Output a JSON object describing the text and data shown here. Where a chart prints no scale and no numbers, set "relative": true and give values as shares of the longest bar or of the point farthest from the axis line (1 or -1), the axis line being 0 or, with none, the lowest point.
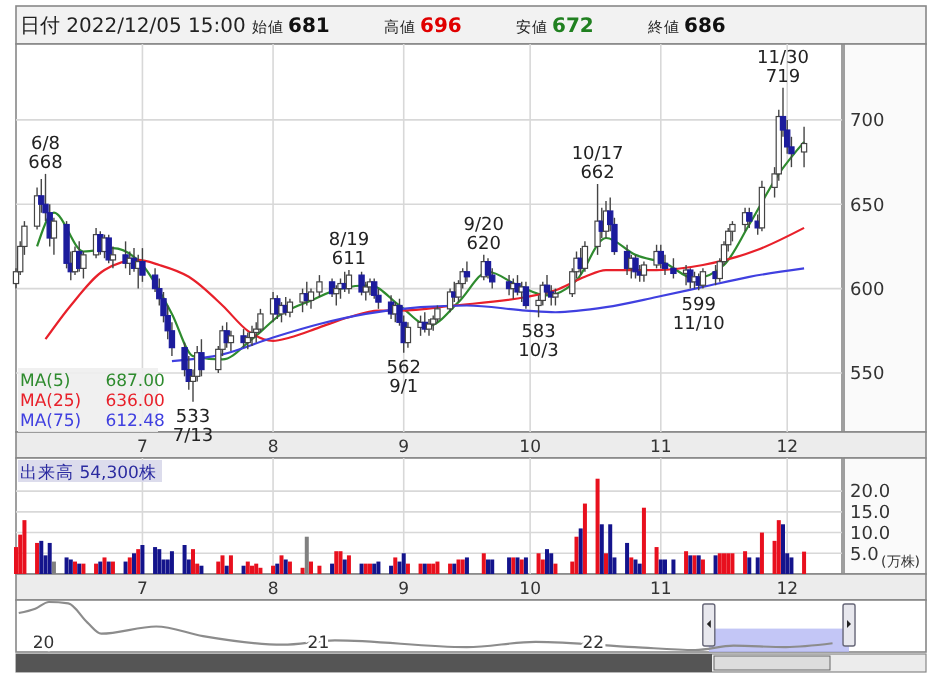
{
  "chart_data": [
    {
      "type": "candlestick",
      "title": "日付 2022/12/05 15:00",
      "annotations": [
        "始値 681",
        "高値 696",
        "安値 672",
        "終値 686",
        {
          "text": "6/8\n668",
          "x": "2022-06-08",
          "y": 668
        },
        {
          "text": "533\n7/13",
          "x": "2022-07-13",
          "y": 533
        },
        {
          "text": "8/19\n611",
          "x": "2022-08-19",
          "y": 611
        },
        {
          "text": "562\n9/1",
          "x": "2022-09-01",
          "y": 562
        },
        {
          "text": "9/20\n620",
          "x": "2022-09-20",
          "y": 620
        },
        {
          "text": "583\n10/3",
          "x": "2022-10-03",
          "y": 583
        },
        {
          "text": "10/17\n662",
          "x": "2022-10-17",
          "y": 662
        },
        {
          "text": "599\n11/10",
          "x": "2022-11-10",
          "y": 599
        },
        {
          "text": "11/30\n719",
          "x": "2022-11-30",
          "y": 719
        }
      ],
      "x": [
        "2022-06-01",
        "2022-06-02",
        "2022-06-03",
        "2022-06-06",
        "2022-06-07",
        "2022-06-08",
        "2022-06-09",
        "2022-06-10",
        "2022-06-13",
        "2022-06-14",
        "2022-06-15",
        "2022-06-16",
        "2022-06-17",
        "2022-06-20",
        "2022-06-21",
        "2022-06-22",
        "2022-06-23",
        "2022-06-24",
        "2022-06-27",
        "2022-06-28",
        "2022-06-29",
        "2022-06-30",
        "2022-07-01",
        "2022-07-04",
        "2022-07-05",
        "2022-07-06",
        "2022-07-07",
        "2022-07-08",
        "2022-07-11",
        "2022-07-12",
        "2022-07-13",
        "2022-07-14",
        "2022-07-15",
        "2022-07-19",
        "2022-07-20",
        "2022-07-21",
        "2022-07-22",
        "2022-07-25",
        "2022-07-26",
        "2022-07-27",
        "2022-07-28",
        "2022-07-29",
        "2022-08-01",
        "2022-08-02",
        "2022-08-03",
        "2022-08-04",
        "2022-08-05",
        "2022-08-08",
        "2022-08-09",
        "2022-08-10",
        "2022-08-12",
        "2022-08-15",
        "2022-08-16",
        "2022-08-17",
        "2022-08-18",
        "2022-08-19",
        "2022-08-22",
        "2022-08-23",
        "2022-08-24",
        "2022-08-25",
        "2022-08-26",
        "2022-08-29",
        "2022-08-30",
        "2022-08-31",
        "2022-09-01",
        "2022-09-02",
        "2022-09-05",
        "2022-09-06",
        "2022-09-07",
        "2022-09-08",
        "2022-09-09",
        "2022-09-12",
        "2022-09-13",
        "2022-09-14",
        "2022-09-15",
        "2022-09-16",
        "2022-09-20",
        "2022-09-21",
        "2022-09-22",
        "2022-09-26",
        "2022-09-27",
        "2022-09-28",
        "2022-09-29",
        "2022-09-30",
        "2022-10-03",
        "2022-10-04",
        "2022-10-05",
        "2022-10-06",
        "2022-10-07",
        "2022-10-11",
        "2022-10-12",
        "2022-10-13",
        "2022-10-14",
        "2022-10-17",
        "2022-10-18",
        "2022-10-19",
        "2022-10-20",
        "2022-10-21",
        "2022-10-24",
        "2022-10-25",
        "2022-10-26",
        "2022-10-27",
        "2022-10-28",
        "2022-10-31",
        "2022-11-01",
        "2022-11-02",
        "2022-11-04",
        "2022-11-07",
        "2022-11-08",
        "2022-11-09",
        "2022-11-10",
        "2022-11-11",
        "2022-11-14",
        "2022-11-15",
        "2022-11-16",
        "2022-11-17",
        "2022-11-18",
        "2022-11-21",
        "2022-11-22",
        "2022-11-24",
        "2022-11-25",
        "2022-11-28",
        "2022-11-29",
        "2022-11-30",
        "2022-12-01",
        "2022-12-02",
        "2022-12-05"
      ],
      "ohlc": [
        [
          603,
          612,
          600,
          610
        ],
        [
          610,
          628,
          608,
          625
        ],
        [
          625,
          640,
          620,
          637
        ],
        [
          637,
          660,
          635,
          655
        ],
        [
          655,
          665,
          645,
          650
        ],
        [
          650,
          668,
          640,
          645
        ],
        [
          645,
          650,
          625,
          630
        ],
        [
          630,
          642,
          620,
          640
        ],
        [
          638,
          640,
          612,
          615
        ],
        [
          615,
          622,
          605,
          610
        ],
        [
          610,
          625,
          608,
          622
        ],
        [
          622,
          628,
          610,
          612
        ],
        [
          612,
          622,
          606,
          620
        ],
        [
          620,
          636,
          618,
          632
        ],
        [
          632,
          634,
          620,
          622
        ],
        [
          622,
          632,
          618,
          630
        ],
        [
          630,
          632,
          615,
          617
        ],
        [
          617,
          625,
          612,
          620
        ],
        [
          620,
          628,
          612,
          615
        ],
        [
          615,
          622,
          608,
          618
        ],
        [
          618,
          624,
          610,
          612
        ],
        [
          612,
          620,
          600,
          616
        ],
        [
          616,
          624,
          604,
          608
        ],
        [
          608,
          612,
          598,
          600
        ],
        [
          600,
          606,
          590,
          594
        ],
        [
          594,
          598,
          580,
          584
        ],
        [
          584,
          590,
          570,
          575
        ],
        [
          575,
          580,
          560,
          565
        ],
        [
          565,
          568,
          548,
          552
        ],
        [
          552,
          560,
          540,
          545
        ],
        [
          545,
          552,
          533,
          548
        ],
        [
          548,
          566,
          545,
          562
        ],
        [
          562,
          570,
          548,
          552
        ],
        [
          552,
          566,
          550,
          564
        ],
        [
          564,
          578,
          560,
          575
        ],
        [
          575,
          580,
          565,
          568
        ],
        [
          568,
          575,
          563,
          572
        ],
        [
          572,
          576,
          565,
          568
        ],
        [
          568,
          574,
          564,
          571
        ],
        [
          571,
          578,
          566,
          574
        ],
        [
          574,
          580,
          568,
          576
        ],
        [
          576,
          588,
          574,
          585
        ],
        [
          585,
          598,
          580,
          594
        ],
        [
          594,
          596,
          582,
          585
        ],
        [
          585,
          592,
          580,
          590
        ],
        [
          590,
          595,
          584,
          586
        ],
        [
          586,
          594,
          583,
          592
        ],
        [
          592,
          600,
          586,
          597
        ],
        [
          597,
          604,
          590,
          593
        ],
        [
          593,
          600,
          588,
          598
        ],
        [
          598,
          608,
          595,
          604
        ],
        [
          604,
          606,
          595,
          597
        ],
        [
          597,
          602,
          590,
          600
        ],
        [
          600,
          606,
          594,
          603
        ],
        [
          603,
          610,
          598,
          600
        ],
        [
          600,
          611,
          597,
          608
        ],
        [
          608,
          610,
          596,
          598
        ],
        [
          598,
          604,
          593,
          601
        ],
        [
          601,
          606,
          596,
          604
        ],
        [
          604,
          606,
          594,
          596
        ],
        [
          596,
          600,
          588,
          592
        ],
        [
          592,
          596,
          582,
          585
        ],
        [
          585,
          592,
          580,
          590
        ],
        [
          590,
          594,
          578,
          580
        ],
        [
          580,
          584,
          562,
          568
        ],
        [
          568,
          580,
          565,
          577
        ],
        [
          577,
          584,
          572,
          580
        ],
        [
          580,
          586,
          574,
          576
        ],
        [
          576,
          582,
          572,
          579
        ],
        [
          579,
          584,
          575,
          582
        ],
        [
          582,
          590,
          580,
          588
        ],
        [
          588,
          600,
          586,
          598
        ],
        [
          598,
          604,
          592,
          595
        ],
        [
          595,
          605,
          592,
          603
        ],
        [
          603,
          612,
          600,
          610
        ],
        [
          610,
          616,
          604,
          607
        ],
        [
          607,
          620,
          605,
          616
        ],
        [
          616,
          618,
          606,
          608
        ],
        [
          608,
          612,
          600,
          604
        ],
        [
          604,
          608,
          596,
          600
        ],
        [
          600,
          606,
          594,
          603
        ],
        [
          603,
          608,
          596,
          598
        ],
        [
          598,
          604,
          592,
          601
        ],
        [
          601,
          604,
          588,
          590
        ],
        [
          590,
          596,
          583,
          593
        ],
        [
          593,
          604,
          590,
          602
        ],
        [
          602,
          608,
          596,
          598
        ],
        [
          598,
          602,
          590,
          595
        ],
        [
          595,
          600,
          590,
          597
        ],
        [
          597,
          612,
          595,
          610
        ],
        [
          610,
          622,
          606,
          618
        ],
        [
          618,
          624,
          608,
          612
        ],
        [
          612,
          628,
          610,
          625
        ],
        [
          625,
          662,
          620,
          640
        ],
        [
          640,
          648,
          630,
          634
        ],
        [
          634,
          652,
          630,
          646
        ],
        [
          646,
          654,
          634,
          638
        ],
        [
          638,
          642,
          620,
          622
        ],
        [
          622,
          626,
          608,
          612
        ],
        [
          612,
          620,
          606,
          618
        ],
        [
          618,
          620,
          606,
          610
        ],
        [
          610,
          614,
          604,
          608
        ],
        [
          608,
          616,
          604,
          614
        ],
        [
          614,
          626,
          612,
          622
        ],
        [
          622,
          626,
          612,
          615
        ],
        [
          615,
          620,
          608,
          612
        ],
        [
          612,
          618,
          606,
          609
        ],
        [
          609,
          614,
          602,
          611
        ],
        [
          611,
          612,
          600,
          604
        ],
        [
          604,
          610,
          600,
          607
        ],
        [
          607,
          609,
          599,
          602
        ],
        [
          602,
          612,
          600,
          610
        ],
        [
          610,
          614,
          602,
          606
        ],
        [
          606,
          618,
          604,
          616
        ],
        [
          616,
          628,
          614,
          626
        ],
        [
          626,
          636,
          622,
          634
        ],
        [
          634,
          640,
          628,
          638
        ],
        [
          638,
          648,
          634,
          645
        ],
        [
          645,
          648,
          636,
          640
        ],
        [
          640,
          644,
          632,
          636
        ],
        [
          636,
          664,
          634,
          660
        ],
        [
          660,
          672,
          654,
          668
        ],
        [
          668,
          706,
          664,
          702
        ],
        [
          702,
          719,
          690,
          694
        ],
        [
          694,
          700,
          680,
          684
        ],
        [
          684,
          690,
          672,
          680
        ],
        [
          681,
          696,
          672,
          686
        ]
      ],
      "series": [
        {
          "type": "line",
          "name": "MA(5) 687.00",
          "color": "#2e8b2e",
          "x": [
            "2022-06-06",
            "2022-06-10",
            "2022-06-17",
            "2022-06-24",
            "2022-07-01",
            "2022-07-08",
            "2022-07-13",
            "2022-07-20",
            "2022-07-27",
            "2022-08-03",
            "2022-08-10",
            "2022-08-17",
            "2022-08-24",
            "2022-08-31",
            "2022-09-07",
            "2022-09-14",
            "2022-09-21",
            "2022-09-28",
            "2022-10-05",
            "2022-10-12",
            "2022-10-19",
            "2022-10-26",
            "2022-11-02",
            "2022-11-09",
            "2022-11-16",
            "2022-11-22",
            "2022-11-29",
            "2022-12-05"
          ],
          "values": [
            625,
            645,
            622,
            624,
            614,
            585,
            560,
            558,
            570,
            585,
            593,
            600,
            602,
            590,
            578,
            592,
            610,
            602,
            596,
            605,
            630,
            620,
            615,
            606,
            614,
            638,
            668,
            687
          ]
        },
        {
          "type": "line",
          "name": "MA(25) 636.00",
          "color": "#e8202a",
          "x": [
            "2022-06-08",
            "2022-06-14",
            "2022-06-22",
            "2022-06-30",
            "2022-07-05",
            "2022-07-12",
            "2022-07-20",
            "2022-07-26",
            "2022-08-01",
            "2022-08-05",
            "2022-08-12",
            "2022-08-19",
            "2022-08-26",
            "2022-08-31",
            "2022-09-13",
            "2022-09-30",
            "2022-10-07",
            "2022-10-14",
            "2022-10-19",
            "2022-10-31",
            "2022-11-11",
            "2022-11-24",
            "2022-12-05"
          ],
          "values": [
            570,
            590,
            611,
            617,
            614,
            607,
            590,
            575,
            569,
            571,
            577,
            583,
            587,
            587,
            590,
            595,
            599,
            607,
            611,
            611,
            614,
            623,
            636
          ]
        },
        {
          "type": "line",
          "name": "MA(75) 612.48",
          "color": "#4040e0",
          "x": [
            "2022-07-08",
            "2022-07-20",
            "2022-08-01",
            "2022-08-12",
            "2022-08-23",
            "2022-09-05",
            "2022-09-16",
            "2022-09-30",
            "2022-10-07",
            "2022-10-19",
            "2022-10-31",
            "2022-11-11",
            "2022-11-22",
            "2022-12-05"
          ],
          "values": [
            557,
            561,
            571,
            579,
            585,
            589,
            590,
            587,
            586,
            589,
            595,
            601,
            607,
            612
          ]
        }
      ],
      "xlim": [
        "2022-06-01",
        "2022-12-14"
      ],
      "xticks": [
        {
          "value": "2022-07-01",
          "label": "7"
        },
        {
          "value": "2022-08-01",
          "label": "8"
        },
        {
          "value": "2022-09-01",
          "label": "9"
        },
        {
          "value": "2022-10-01",
          "label": "10"
        },
        {
          "value": "2022-11-01",
          "label": "11"
        },
        {
          "value": "2022-12-01",
          "label": "12"
        }
      ],
      "ylim": [
        515,
        745
      ],
      "yticks": [
        550,
        600,
        650,
        700
      ],
      "grid": true
    },
    {
      "type": "bar",
      "title": "出来高 54,300株",
      "ylabel": "(万株)",
      "x": [
        "2022-06-01",
        "2022-06-02",
        "2022-06-03",
        "2022-06-06",
        "2022-06-07",
        "2022-06-08",
        "2022-06-09",
        "2022-06-10",
        "2022-06-13",
        "2022-06-14",
        "2022-06-15",
        "2022-06-16",
        "2022-06-17",
        "2022-06-20",
        "2022-06-21",
        "2022-06-22",
        "2022-06-23",
        "2022-06-24",
        "2022-06-27",
        "2022-06-28",
        "2022-06-29",
        "2022-06-30",
        "2022-07-01",
        "2022-07-04",
        "2022-07-05",
        "2022-07-06",
        "2022-07-07",
        "2022-07-08",
        "2022-07-11",
        "2022-07-12",
        "2022-07-13",
        "2022-07-14",
        "2022-07-15",
        "2022-07-19",
        "2022-07-20",
        "2022-07-21",
        "2022-07-22",
        "2022-07-25",
        "2022-07-26",
        "2022-07-27",
        "2022-07-28",
        "2022-07-29",
        "2022-08-01",
        "2022-08-02",
        "2022-08-03",
        "2022-08-04",
        "2022-08-05",
        "2022-08-08",
        "2022-08-09",
        "2022-08-10",
        "2022-08-12",
        "2022-08-15",
        "2022-08-16",
        "2022-08-17",
        "2022-08-18",
        "2022-08-19",
        "2022-08-22",
        "2022-08-23",
        "2022-08-24",
        "2022-08-25",
        "2022-08-26",
        "2022-08-29",
        "2022-08-30",
        "2022-08-31",
        "2022-09-01",
        "2022-09-02",
        "2022-09-05",
        "2022-09-06",
        "2022-09-07",
        "2022-09-08",
        "2022-09-09",
        "2022-09-12",
        "2022-09-13",
        "2022-09-14",
        "2022-09-15",
        "2022-09-16",
        "2022-09-20",
        "2022-09-21",
        "2022-09-22",
        "2022-09-26",
        "2022-09-27",
        "2022-09-28",
        "2022-09-29",
        "2022-09-30",
        "2022-10-03",
        "2022-10-04",
        "2022-10-05",
        "2022-10-06",
        "2022-10-07",
        "2022-10-11",
        "2022-10-12",
        "2022-10-13",
        "2022-10-14",
        "2022-10-17",
        "2022-10-18",
        "2022-10-19",
        "2022-10-20",
        "2022-10-21",
        "2022-10-24",
        "2022-10-25",
        "2022-10-26",
        "2022-10-27",
        "2022-10-28",
        "2022-10-31",
        "2022-11-01",
        "2022-11-02",
        "2022-11-04",
        "2022-11-07",
        "2022-11-08",
        "2022-11-09",
        "2022-11-10",
        "2022-11-11",
        "2022-11-14",
        "2022-11-15",
        "2022-11-16",
        "2022-11-17",
        "2022-11-18",
        "2022-11-21",
        "2022-11-22",
        "2022-11-24",
        "2022-11-25",
        "2022-11-28",
        "2022-11-29",
        "2022-11-30",
        "2022-12-01",
        "2022-12-02",
        "2022-12-05"
      ],
      "values": [
        6.5,
        9.5,
        13,
        7.5,
        8,
        4.5,
        7.5,
        3,
        4,
        3.5,
        3,
        2.5,
        2.5,
        2.5,
        3,
        4,
        3,
        3,
        3,
        4,
        5,
        6,
        7,
        6.5,
        6,
        3.5,
        3.5,
        5.5,
        7,
        3.5,
        6,
        2.5,
        2,
        3,
        4.5,
        2,
        4.5,
        2,
        3,
        2,
        2.5,
        1.5,
        2,
        2.5,
        4.5,
        3.5,
        3,
        1.5,
        9,
        3,
        2,
        2.5,
        5.5,
        5.5,
        3.5,
        4.5,
        2.5,
        2.5,
        2.5,
        2.5,
        3,
        2,
        4,
        3,
        5,
        2.5,
        2.5,
        2.5,
        2.5,
        2.5,
        3,
        2.5,
        2.5,
        3.5,
        3.5,
        4,
        5,
        3.5,
        3.5,
        4,
        4,
        4,
        3.5,
        4,
        5,
        3.5,
        6,
        5,
        2.5,
        3,
        9,
        11,
        17,
        23,
        12,
        5,
        12,
        4,
        7.5,
        4,
        3.5,
        2.5,
        16,
        6.5,
        3.5,
        3.5,
        3.5,
        5.5,
        4.5,
        4.5,
        4.5,
        3.5,
        4.5,
        5,
        5,
        5,
        5,
        5.5,
        4,
        4,
        10,
        8,
        13,
        12,
        5,
        4,
        5.4
      ],
      "colors": [
        "#e8101e",
        "#e8101e",
        "#e8101e",
        "#e8101e",
        "#14148c",
        "#14148c",
        "#14148c",
        "#808080",
        "#14148c",
        "#14148c",
        "#e8101e",
        "#14148c",
        "#e8101e",
        "#e8101e",
        "#14148c",
        "#e8101e",
        "#14148c",
        "#e8101e",
        "#14148c",
        "#e8101e",
        "#14148c",
        "#e8101e",
        "#14148c",
        "#14148c",
        "#14148c",
        "#14148c",
        "#14148c",
        "#14148c",
        "#14148c",
        "#14148c",
        "#e8101e",
        "#e8101e",
        "#14148c",
        "#e8101e",
        "#e8101e",
        "#14148c",
        "#e8101e",
        "#14148c",
        "#e8101e",
        "#e8101e",
        "#e8101e",
        "#e8101e",
        "#e8101e",
        "#14148c",
        "#e8101e",
        "#14148c",
        "#e8101e",
        "#e8101e",
        "#808080",
        "#e8101e",
        "#e8101e",
        "#14148c",
        "#e8101e",
        "#e8101e",
        "#14148c",
        "#e8101e",
        "#14148c",
        "#e8101e",
        "#e8101e",
        "#14148c",
        "#14148c",
        "#14148c",
        "#e8101e",
        "#14148c",
        "#14148c",
        "#e8101e",
        "#e8101e",
        "#14148c",
        "#e8101e",
        "#e8101e",
        "#e8101e",
        "#e8101e",
        "#14148c",
        "#e8101e",
        "#e8101e",
        "#14148c",
        "#e8101e",
        "#14148c",
        "#14148c",
        "#14148c",
        "#e8101e",
        "#14148c",
        "#e8101e",
        "#14148c",
        "#e8101e",
        "#e8101e",
        "#14148c",
        "#14148c",
        "#e8101e",
        "#e8101e",
        "#e8101e",
        "#14148c",
        "#e8101e",
        "#e8101e",
        "#14148c",
        "#e8101e",
        "#14148c",
        "#14148c",
        "#14148c",
        "#e8101e",
        "#14148c",
        "#14148c",
        "#e8101e",
        "#e8101e",
        "#14148c",
        "#14148c",
        "#14148c",
        "#e8101e",
        "#14148c",
        "#e8101e",
        "#14148c",
        "#e8101e",
        "#14148c",
        "#e8101e",
        "#e8101e",
        "#e8101e",
        "#e8101e",
        "#e8101e",
        "#14148c",
        "#14148c",
        "#e8101e",
        "#e8101e",
        "#e8101e",
        "#14148c",
        "#14148c",
        "#14148c",
        "#e8101e"
      ],
      "xlim": [
        "2022-06-01",
        "2022-12-14"
      ],
      "xticks": [
        {
          "value": "2022-07-01",
          "label": "7"
        },
        {
          "value": "2022-08-01",
          "label": "8"
        },
        {
          "value": "2022-09-01",
          "label": "9"
        },
        {
          "value": "2022-10-01",
          "label": "10"
        },
        {
          "value": "2022-11-01",
          "label": "11"
        },
        {
          "value": "2022-12-01",
          "label": "12"
        }
      ],
      "ylim": [
        0,
        28
      ],
      "yticks": [
        {
          "value": 5,
          "label": "5.0"
        },
        {
          "value": 10,
          "label": "10.0"
        },
        {
          "value": 15,
          "label": "15.0"
        },
        {
          "value": 20,
          "label": "20.0"
        }
      ],
      "grid": true
    },
    {
      "type": "line",
      "relative": true,
      "tick_labels": "x",
      "series": [
        {
          "color": "#8c8c8c",
          "x": [
            2019.91,
            2019.97,
            2020.02,
            2020.09,
            2020.16,
            2020.21,
            2020.41,
            2020.58,
            2020.87,
            2021.06,
            2021.54,
            2021.79,
            2022.15,
            2022.37,
            2022.51,
            2022.7,
            2022.87
          ],
          "values": [
            0.77,
            0.86,
            1,
            0.97,
            0.57,
            0.34,
            0.49,
            0.29,
            0.11,
            0.2,
            0.06,
            0.17,
            0.06,
            0,
            0.09,
            0.06,
            0.14
          ]
        }
      ],
      "bands": [
        {
          "axis": "x",
          "from": 2022.42,
          "to": 2022.93,
          "color": "#b4b8f4"
        }
      ],
      "xlim": [
        2019.9,
        2023.21
      ],
      "xticks": [
        {
          "value": 2020,
          "label": "20"
        },
        {
          "value": 2021,
          "label": "21"
        },
        {
          "value": 2022,
          "label": "22"
        }
      ]
    }
  ]
}
